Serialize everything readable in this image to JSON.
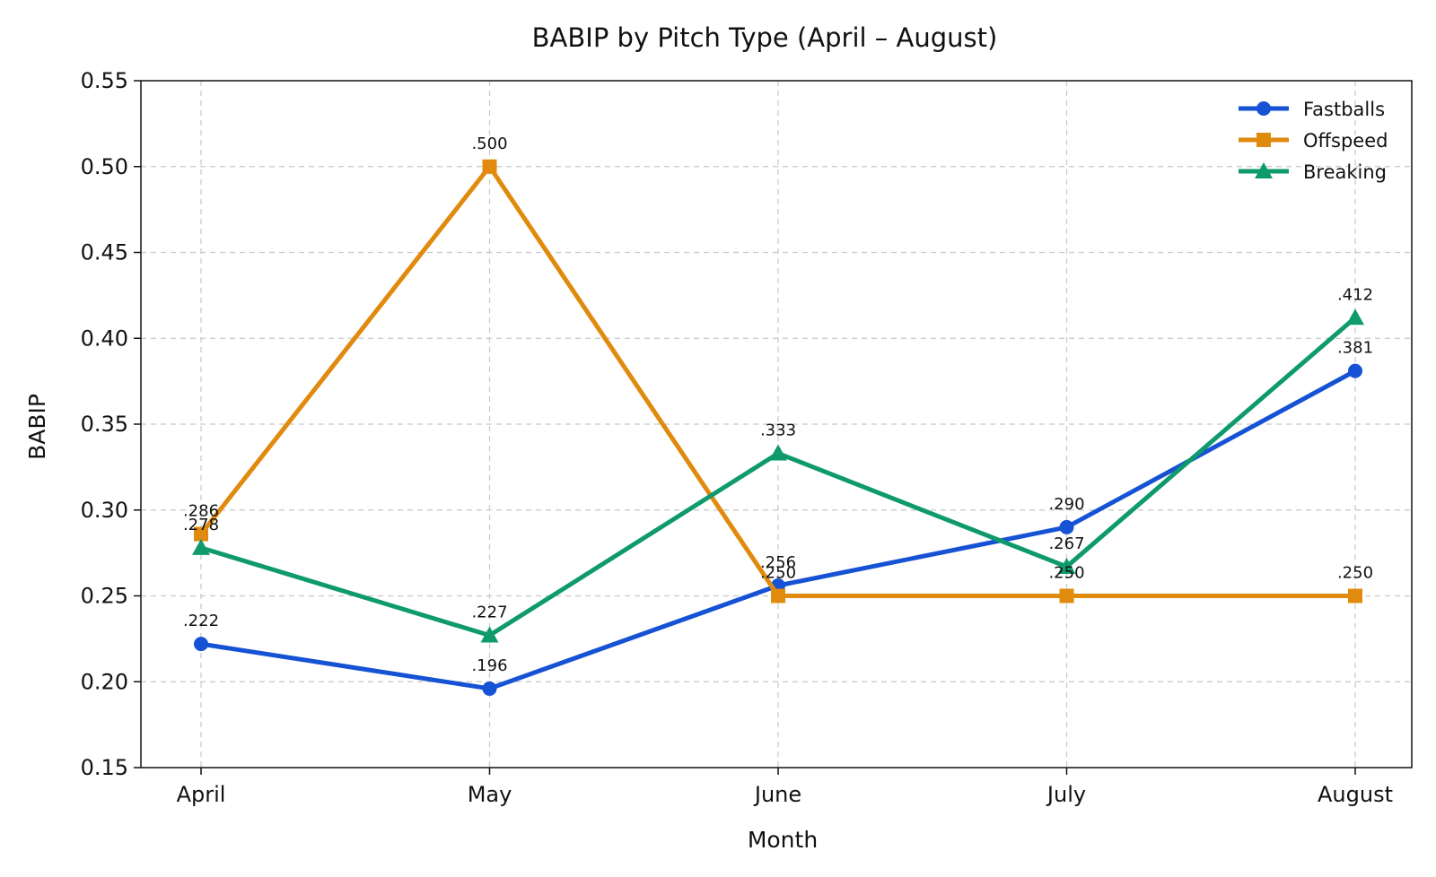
{
  "chart_data": {
    "type": "line",
    "title": "BABIP by Pitch Type (April – August)",
    "xlabel": "Month",
    "ylabel": "BABIP",
    "categories": [
      "April",
      "May",
      "June",
      "July",
      "August"
    ],
    "ylim": [
      0.15,
      0.55
    ],
    "yticks": [
      "0.15",
      "0.20",
      "0.25",
      "0.30",
      "0.35",
      "0.40",
      "0.45",
      "0.50",
      "0.55"
    ],
    "grid": true,
    "legend_position": "top-right",
    "series": [
      {
        "name": "Fastballs",
        "color": "#1552d4",
        "marker": "circle",
        "values": [
          0.222,
          0.196,
          0.256,
          0.29,
          0.381
        ],
        "labels": [
          ".222",
          ".196",
          ".256",
          ".290",
          ".381"
        ]
      },
      {
        "name": "Offspeed",
        "color": "#e08a0e",
        "marker": "square",
        "values": [
          0.286,
          0.5,
          0.25,
          0.25,
          0.25
        ],
        "labels": [
          ".286",
          ".500",
          ".250",
          ".250",
          ".250"
        ]
      },
      {
        "name": "Breaking",
        "color": "#0e9a6c",
        "marker": "triangle",
        "values": [
          0.278,
          0.227,
          0.333,
          0.267,
          0.412
        ],
        "labels": [
          ".278",
          ".227",
          ".333",
          ".267",
          ".412"
        ]
      }
    ]
  }
}
